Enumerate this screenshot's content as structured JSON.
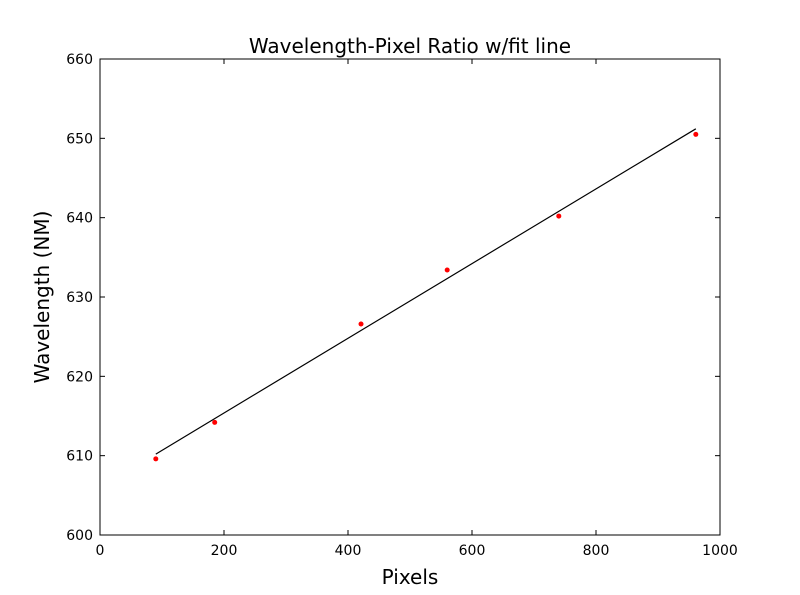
{
  "chart_data": {
    "type": "scatter",
    "title": "Wavelength-Pixel Ratio w/fit line",
    "xlabel": "Pixels",
    "ylabel": "Wavelength (NM)",
    "xlim": [
      0,
      1000
    ],
    "ylim": [
      600,
      660
    ],
    "xticks": [
      0,
      200,
      400,
      600,
      800,
      1000
    ],
    "yticks": [
      600,
      610,
      620,
      630,
      640,
      650,
      660
    ],
    "xtick_labels": [
      "0",
      "200",
      "400",
      "600",
      "800",
      "1000"
    ],
    "ytick_labels": [
      "600",
      "610",
      "620",
      "630",
      "640",
      "650",
      "660"
    ],
    "grid": false,
    "series": [
      {
        "type": "scatter",
        "color": "#ff0000",
        "x": [
          90,
          185,
          421,
          560,
          740,
          961
        ],
        "y": [
          609.6,
          614.2,
          626.6,
          633.4,
          640.2,
          650.5
        ]
      },
      {
        "type": "line",
        "color": "#000000",
        "x": [
          90,
          961
        ],
        "y": [
          610.2,
          651.2
        ]
      }
    ]
  }
}
